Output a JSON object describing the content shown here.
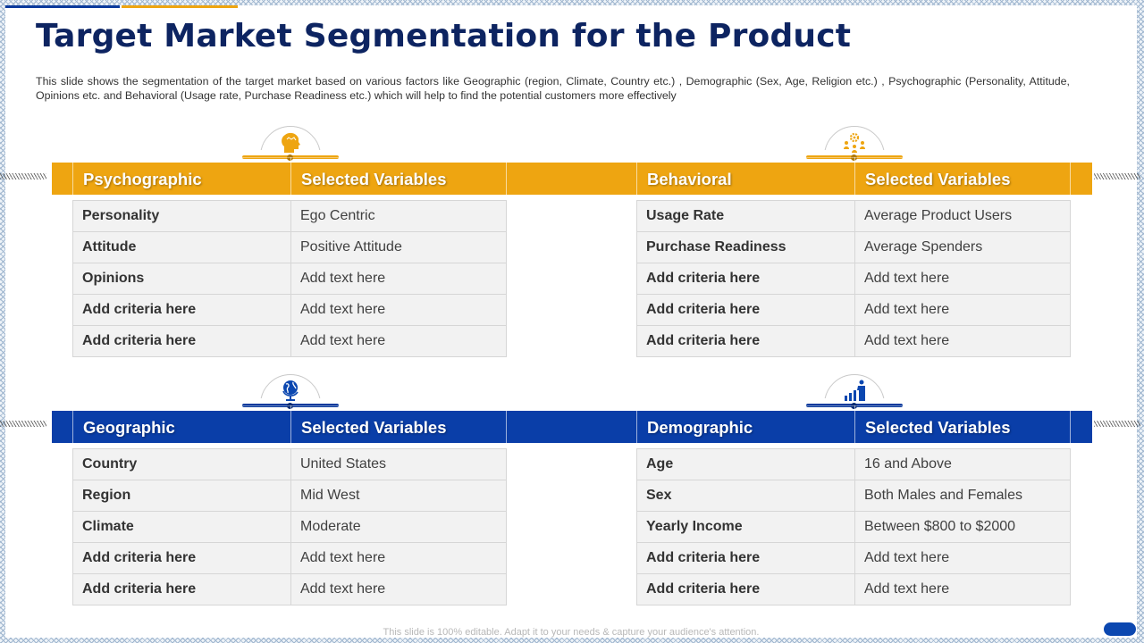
{
  "title": "Target Market Segmentation for the Product",
  "description": "This slide shows the segmentation of the target market based on various factors like Geographic (region, Climate, Country etc.) , Demographic (Sex, Age, Religion etc.) , Psychographic (Personality, Attitude, Opinions etc. and Behavioral (Usage rate, Purchase Readiness etc.) which will help to find the potential customers more effectively",
  "footer": "This slide is 100% editable. Adapt it to your needs & capture your audience's attention.",
  "colors": {
    "gold": "#eea511",
    "blue": "#0a3ea8",
    "title": "#0d2461"
  },
  "tables": {
    "psychographic": {
      "icon": "head-profile-icon",
      "header": [
        "Psychographic",
        "Selected Variables"
      ],
      "rows": [
        [
          "Personality",
          "Ego Centric"
        ],
        [
          "Attitude",
          "Positive Attitude"
        ],
        [
          "Opinions",
          "Add text here"
        ],
        [
          "Add criteria here",
          "Add text here"
        ],
        [
          "Add criteria here",
          "Add text here"
        ]
      ]
    },
    "behavioral": {
      "icon": "gear-people-icon",
      "header": [
        "Behavioral",
        "Selected Variables"
      ],
      "rows": [
        [
          "Usage Rate",
          "Average Product Users"
        ],
        [
          "Purchase Readiness",
          "Average Spenders"
        ],
        [
          "Add criteria here",
          "Add text here"
        ],
        [
          "Add criteria here",
          "Add text here"
        ],
        [
          "Add criteria here",
          "Add text here"
        ]
      ]
    },
    "geographic": {
      "icon": "globe-icon",
      "header": [
        "Geographic",
        "Selected Variables"
      ],
      "rows": [
        [
          "Country",
          "United States"
        ],
        [
          "Region",
          "Mid West"
        ],
        [
          "Climate",
          "Moderate"
        ],
        [
          "Add criteria here",
          "Add text here"
        ],
        [
          "Add criteria here",
          "Add text here"
        ]
      ]
    },
    "demographic": {
      "icon": "person-bar-chart-icon",
      "header": [
        "Demographic",
        "Selected Variables"
      ],
      "rows": [
        [
          "Age",
          "16 and Above"
        ],
        [
          "Sex",
          "Both Males and Females"
        ],
        [
          "Yearly Income",
          "Between $800 to $2000"
        ],
        [
          "Add criteria here",
          "Add text here"
        ],
        [
          "Add criteria here",
          "Add text here"
        ]
      ]
    }
  }
}
